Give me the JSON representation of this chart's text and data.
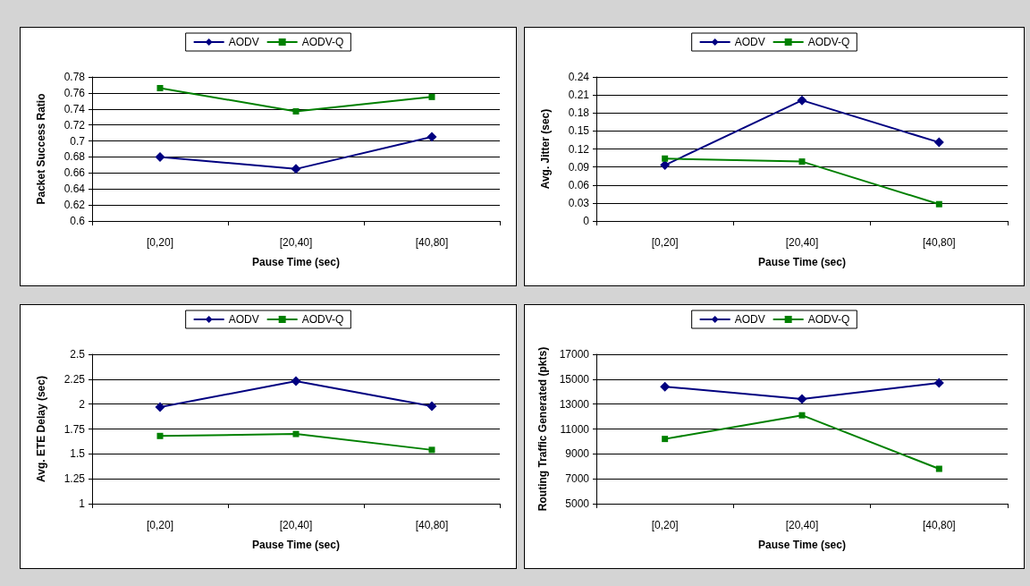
{
  "chart_data": [
    {
      "type": "line",
      "xlabel": "Pause Time (sec)",
      "ylabel": "Packet Success Ratio",
      "categories": [
        "[0,20]",
        "[20,40]",
        "[40,80]"
      ],
      "series": [
        {
          "name": "AODV",
          "color": "#000080",
          "marker": "diamond",
          "values": [
            0.68,
            0.665,
            0.705
          ]
        },
        {
          "name": "AODV-Q",
          "color": "#008000",
          "marker": "square",
          "values": [
            0.766,
            0.737,
            0.755
          ]
        }
      ],
      "ylim": [
        0.6,
        0.78
      ],
      "yticks": [
        0.6,
        0.62,
        0.64,
        0.66,
        0.68,
        0.7,
        0.72,
        0.74,
        0.76,
        0.78
      ],
      "grid": "y",
      "legend": "top"
    },
    {
      "type": "line",
      "xlabel": "Pause Time (sec)",
      "ylabel": "Avg. Jitter (sec)",
      "categories": [
        "[0,20]",
        "[20,40]",
        "[40,80]"
      ],
      "series": [
        {
          "name": "AODV",
          "color": "#000080",
          "marker": "diamond",
          "values": [
            0.093,
            0.201,
            0.131
          ]
        },
        {
          "name": "AODV-Q",
          "color": "#008000",
          "marker": "square",
          "values": [
            0.104,
            0.099,
            0.028
          ]
        }
      ],
      "ylim": [
        0,
        0.24
      ],
      "yticks": [
        0,
        0.03,
        0.06,
        0.09,
        0.12,
        0.15,
        0.18,
        0.21,
        0.24
      ],
      "grid": "y",
      "legend": "top"
    },
    {
      "type": "line",
      "xlabel": "Pause Time (sec)",
      "ylabel": "Avg. ETE Delay (sec)",
      "categories": [
        "[0,20]",
        "[20,40]",
        "[40,80]"
      ],
      "series": [
        {
          "name": "AODV",
          "color": "#000080",
          "marker": "diamond",
          "values": [
            1.97,
            2.23,
            1.98
          ]
        },
        {
          "name": "AODV-Q",
          "color": "#008000",
          "marker": "square",
          "values": [
            1.68,
            1.7,
            1.54
          ]
        }
      ],
      "ylim": [
        1,
        2.5
      ],
      "yticks": [
        1,
        1.25,
        1.5,
        1.75,
        2,
        2.25,
        2.5
      ],
      "grid": "y",
      "legend": "top"
    },
    {
      "type": "line",
      "xlabel": "Pause Time (sec)",
      "ylabel": "Routing Traffic Generated (pkts)",
      "categories": [
        "[0,20]",
        "[20,40]",
        "[40,80]"
      ],
      "series": [
        {
          "name": "AODV",
          "color": "#000080",
          "marker": "diamond",
          "values": [
            14400,
            13400,
            14700
          ]
        },
        {
          "name": "AODV-Q",
          "color": "#008000",
          "marker": "square",
          "values": [
            10200,
            12100,
            7800
          ]
        }
      ],
      "ylim": [
        5000,
        17000
      ],
      "yticks": [
        5000,
        7000,
        9000,
        11000,
        13000,
        15000,
        17000
      ],
      "grid": "y",
      "legend": "top"
    }
  ]
}
